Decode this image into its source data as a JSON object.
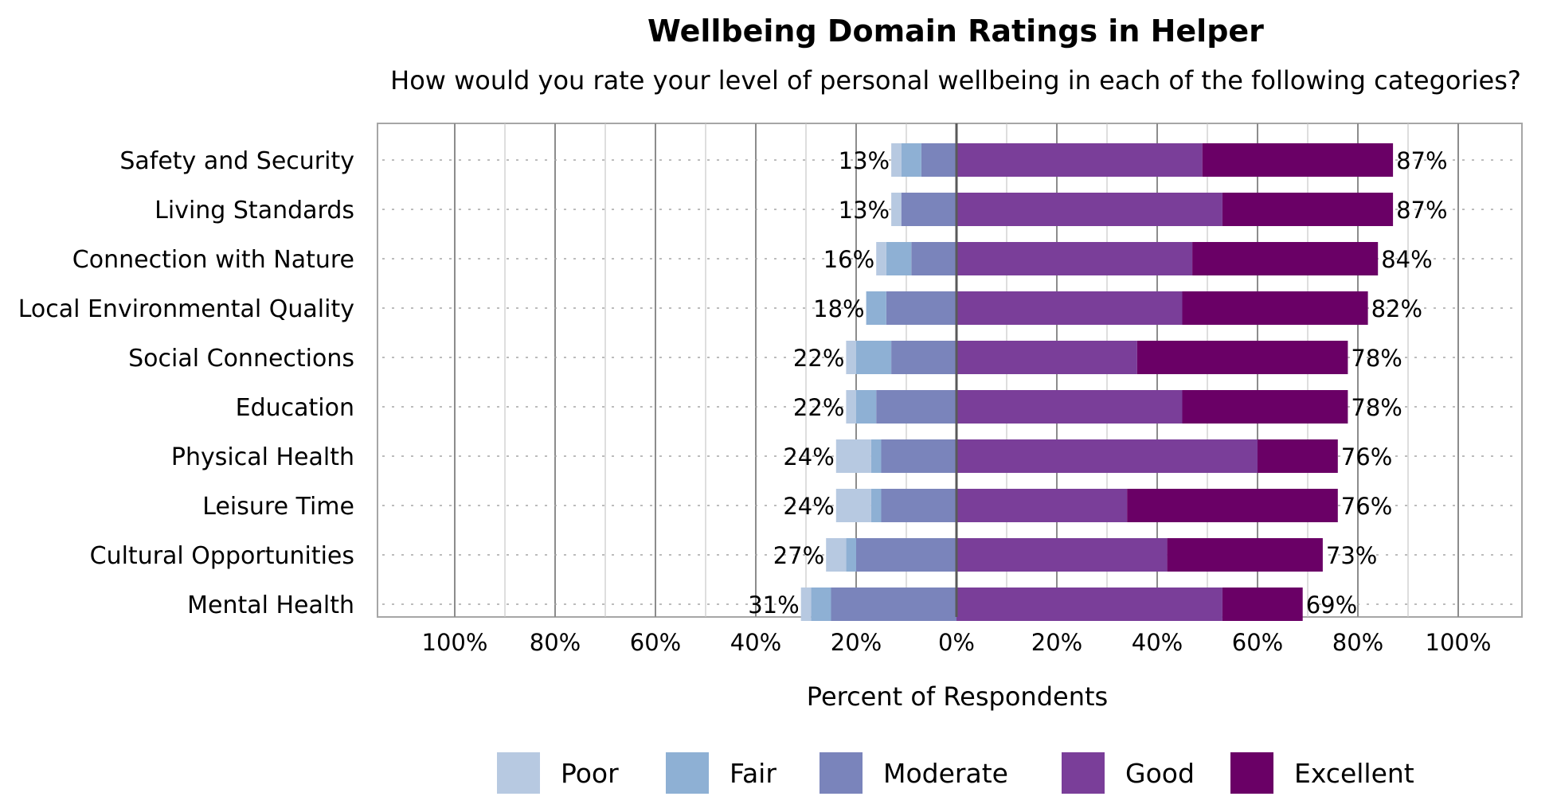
{
  "chart_data": {
    "type": "bar",
    "orientation": "horizontal",
    "stacking": "diverging",
    "title": "Wellbeing Domain Ratings in Helper",
    "subtitle": "How would you rate your level of personal wellbeing in each of the following categories?",
    "xlabel": "Percent of Respondents",
    "xlim": [
      -100,
      100
    ],
    "x_ticks": [
      "100%",
      "80%",
      "60%",
      "40%",
      "20%",
      "0%",
      "20%",
      "40%",
      "60%",
      "80%",
      "100%"
    ],
    "grid": true,
    "legend_position": "bottom",
    "categories": [
      "Safety and Security",
      "Living Standards",
      "Connection with Nature",
      "Local Environmental Quality",
      "Social Connections",
      "Education",
      "Physical Health",
      "Leisure Time",
      "Cultural Opportunities",
      "Mental Health"
    ],
    "series": [
      {
        "name": "Poor",
        "side": "negative",
        "color": "#b7c9e1",
        "values": [
          2,
          2,
          2,
          0,
          2,
          2,
          7,
          7,
          4,
          2
        ]
      },
      {
        "name": "Fair",
        "side": "negative",
        "color": "#8eb0d4",
        "values": [
          4,
          0,
          5,
          4,
          7,
          4,
          2,
          2,
          2,
          4
        ]
      },
      {
        "name": "Moderate",
        "side": "negative",
        "color": "#7a84bb",
        "values": [
          7,
          11,
          9,
          14,
          13,
          16,
          15,
          15,
          20,
          25
        ]
      },
      {
        "name": "Good",
        "side": "positive",
        "color": "#7a3e99",
        "values": [
          49,
          53,
          47,
          45,
          36,
          45,
          60,
          34,
          42,
          53
        ]
      },
      {
        "name": "Excellent",
        "side": "positive",
        "color": "#6a0066",
        "values": [
          38,
          34,
          37,
          37,
          42,
          33,
          16,
          42,
          31,
          16
        ]
      }
    ],
    "negative_totals": [
      "13%",
      "13%",
      "16%",
      "18%",
      "22%",
      "22%",
      "24%",
      "24%",
      "27%",
      "31%"
    ],
    "positive_totals": [
      "87%",
      "87%",
      "84%",
      "82%",
      "78%",
      "78%",
      "76%",
      "76%",
      "73%",
      "69%"
    ]
  }
}
